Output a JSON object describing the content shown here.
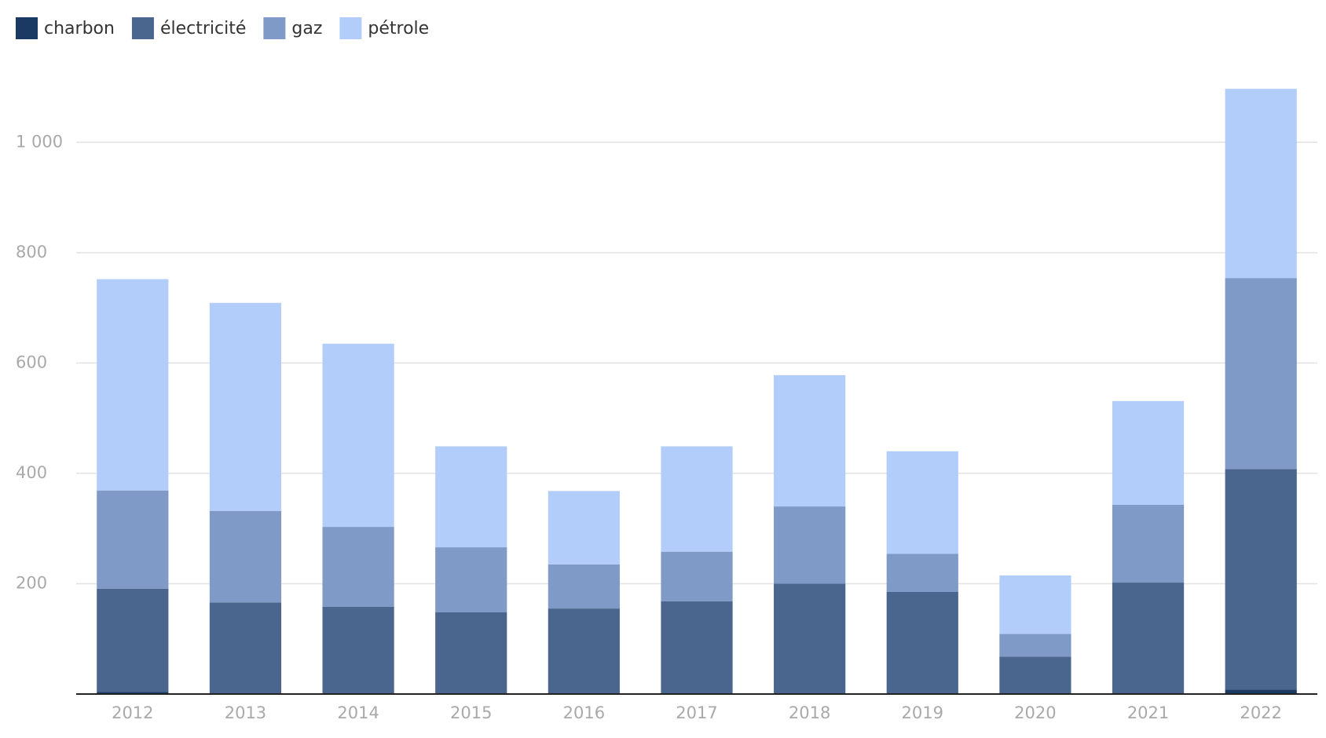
{
  "chart_data": {
    "type": "stacked_bar",
    "categories": [
      "2012",
      "2013",
      "2014",
      "2015",
      "2016",
      "2017",
      "2018",
      "2019",
      "2020",
      "2021",
      "2022"
    ],
    "series": [
      {
        "name": "charbon",
        "color": "#1a3a63",
        "values": [
          4,
          1,
          0,
          0,
          0,
          0,
          0,
          0,
          0,
          2,
          8
        ]
      },
      {
        "name": "électricité",
        "color": "#4a668f",
        "values": [
          187,
          165,
          158,
          148,
          155,
          168,
          200,
          185,
          68,
          200,
          400
        ]
      },
      {
        "name": "gaz",
        "color": "#7f9ac6",
        "values": [
          178,
          166,
          145,
          118,
          80,
          90,
          140,
          69,
          41,
          141,
          346
        ]
      },
      {
        "name": "pétrole",
        "color": "#b3cdfb",
        "values": [
          383,
          377,
          332,
          183,
          133,
          191,
          238,
          186,
          106,
          188,
          343
        ]
      }
    ],
    "ylim": [
      0,
      1100
    ],
    "yticks": [
      200,
      400,
      600,
      800,
      {
        "value": 1000,
        "label": "1 000"
      }
    ],
    "grid": true,
    "legend": "top-left"
  }
}
